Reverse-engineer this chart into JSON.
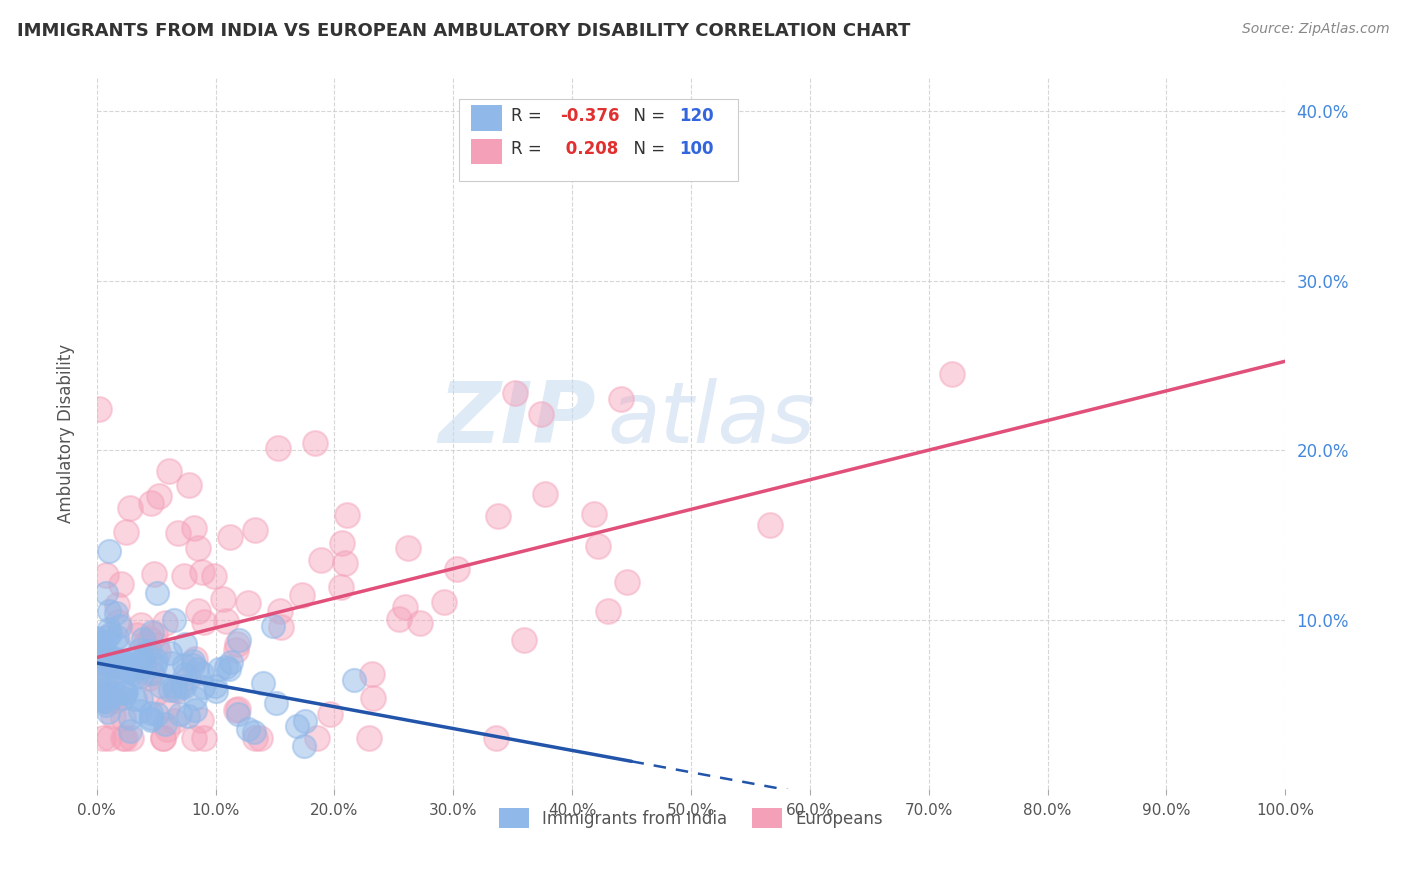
{
  "title": "IMMIGRANTS FROM INDIA VS EUROPEAN AMBULATORY DISABILITY CORRELATION CHART",
  "source_text": "Source: ZipAtlas.com",
  "xlabel": "",
  "ylabel": "Ambulatory Disability",
  "legend_label1": "Immigrants from India",
  "legend_label2": "Europeans",
  "R1": -0.376,
  "N1": 120,
  "R2": 0.208,
  "N2": 100,
  "color1": "#90b8e8",
  "color2": "#f4a0b8",
  "line_color1": "#2255aa",
  "line_color2": "#e0507a",
  "title_color": "#333333",
  "source_color": "#888888",
  "legend_R_neg_color": "#e03030",
  "legend_R_pos_color": "#e03030",
  "legend_N_color": "#3366dd",
  "background": "#ffffff",
  "plot_bg": "#ffffff",
  "watermark_zip": "ZIP",
  "watermark_atlas": "atlas",
  "xlim": [
    0.0,
    1.0
  ],
  "ylim": [
    0.0,
    0.42
  ],
  "xticks": [
    0.0,
    0.1,
    0.2,
    0.3,
    0.4,
    0.5,
    0.6,
    0.7,
    0.8,
    0.9,
    1.0
  ],
  "yticks": [
    0.1,
    0.2,
    0.3,
    0.4
  ],
  "xticklabels": [
    "0.0%",
    "10.0%",
    "20.0%",
    "30.0%",
    "40.0%",
    "50.0%",
    "60.0%",
    "70.0%",
    "80.0%",
    "90.0%",
    "100.0%"
  ],
  "yticklabels_right": [
    "10.0%",
    "20.0%",
    "30.0%",
    "40.0%"
  ],
  "n_india": 120,
  "n_europe": 100,
  "seed1": 42,
  "seed2": 77
}
